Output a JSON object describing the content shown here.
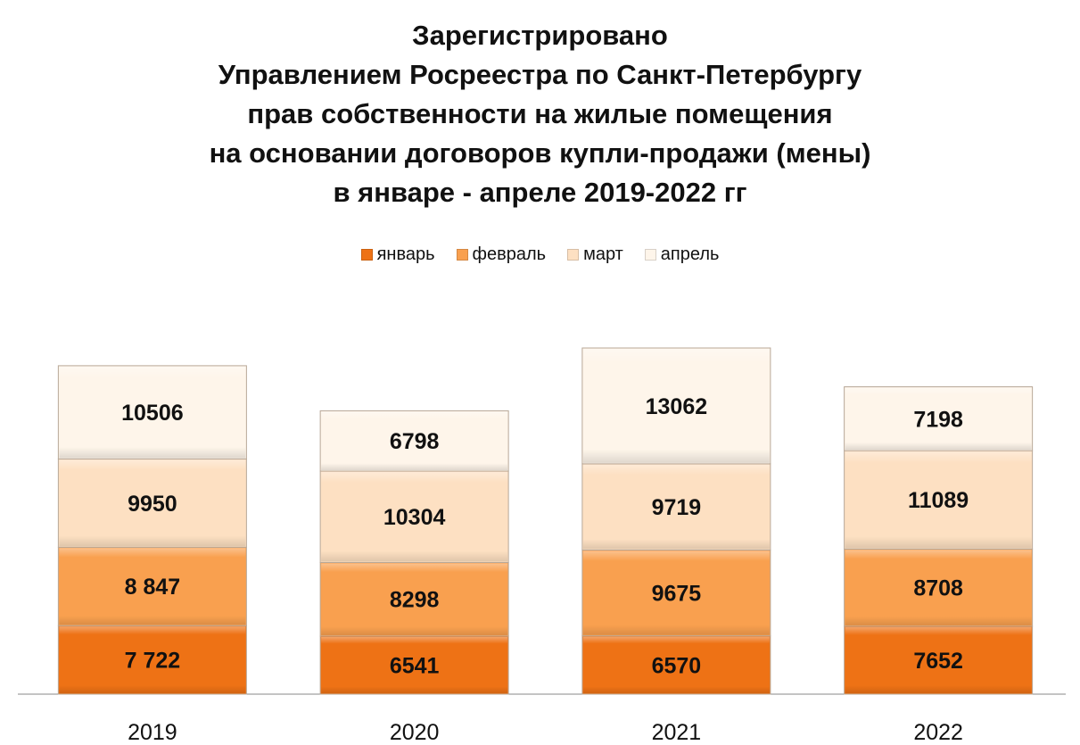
{
  "chart_data": {
    "type": "bar",
    "stacked": true,
    "title": [
      "Зарегистрировано",
      "Управлением Росреестра по Санкт-Петербургу",
      "прав собственности на жилые помещения",
      "на основании договоров купли-продажи (мены)",
      "в январе - апреле 2019-2022 гг"
    ],
    "categories": [
      "2019",
      "2020",
      "2021",
      "2022"
    ],
    "series": [
      {
        "name": "январь",
        "color": "#EE7215",
        "values": [
          7722,
          6541,
          6570,
          7652
        ],
        "labels": [
          "7 722",
          "6541",
          "6570",
          "7652"
        ]
      },
      {
        "name": "февраль",
        "color": "#F9A04F",
        "values": [
          8847,
          8298,
          9675,
          8708
        ],
        "labels": [
          "8 847",
          "8298",
          "9675",
          "8708"
        ]
      },
      {
        "name": "март",
        "color": "#FDE0C2",
        "values": [
          9950,
          10304,
          9719,
          11089
        ],
        "labels": [
          "9950",
          "10304",
          "9719",
          "11089"
        ]
      },
      {
        "name": "апрель",
        "color": "#FEF5EA",
        "values": [
          10506,
          6798,
          13062,
          7198
        ],
        "labels": [
          "10506",
          "6798",
          "13062",
          "7198"
        ]
      }
    ],
    "legend_position": "top",
    "grid": false,
    "ylim": [
      0,
      39026
    ]
  }
}
